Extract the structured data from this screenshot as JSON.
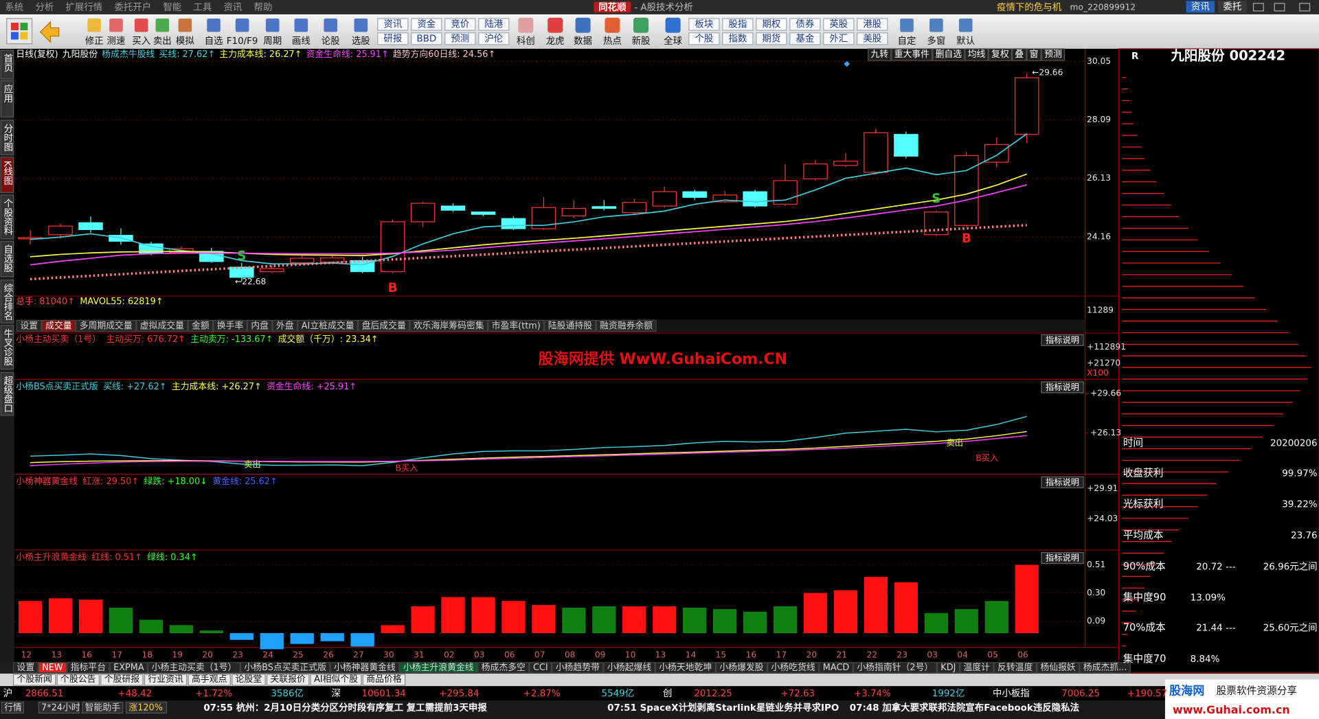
{
  "menu": [
    "系统",
    "分析",
    "扩展行情",
    "委托开户",
    "智能",
    "工具",
    "资讯",
    "帮助"
  ],
  "title": {
    "brand": "同花顺",
    "subtitle": "- A股技术分析"
  },
  "top_right": {
    "promo": "疫情下的危与机",
    "user": "mo_220899912",
    "buttons": [
      "资讯",
      "委托"
    ]
  },
  "toolbar": {
    "buttons": [
      "修正",
      "测速",
      "买入",
      "卖出",
      "模拟",
      "自选",
      "F10/F9",
      "周期",
      "画线",
      "论股",
      "选股"
    ],
    "group1": [
      "资讯",
      "资金",
      "竞价",
      "陆港",
      "研报",
      "BBD",
      "预测",
      "沪伦"
    ],
    "mid": [
      "科创",
      "龙虎",
      "数据",
      "热点",
      "新股",
      "全球"
    ],
    "group2": [
      "板块",
      "股指",
      "期权",
      "债券",
      "英股",
      "港股",
      "个股",
      "指数",
      "期货",
      "基金",
      "外汇",
      "美股"
    ],
    "right": [
      "自定",
      "多窗",
      "默认"
    ]
  },
  "sidebar": [
    "首页",
    "应用",
    "分时图",
    "K线图",
    "个股资料",
    "自选股",
    "综合排名",
    "牛叉诊股",
    "超级盘口"
  ],
  "main_chart": {
    "type": "candlestick",
    "header": [
      {
        "text": "日线(复权)",
        "color": "#ffffff"
      },
      {
        "text": "九阳股份",
        "color": "#ffffff"
      },
      {
        "text": "杨成杰牛股线",
        "color": "#3fd0e0"
      },
      {
        "text": "买线: 27.62↑",
        "color": "#3fd0e0"
      },
      {
        "text": "主力成本线: 26.27↑",
        "color": "#ffff40"
      },
      {
        "text": "资金生命线: 25.91↑",
        "color": "#ff40ff"
      },
      {
        "text": "趋势方向60日线: 24.56↑",
        "color": "#ffc0c0"
      }
    ],
    "tools": [
      "九转",
      "重大事件",
      "删自选",
      "均线",
      "复权",
      "叠",
      "窗",
      "预测"
    ],
    "ylim": [
      22.24,
      30.47
    ],
    "yticks": [
      30.05,
      28.09,
      26.13,
      24.16
    ],
    "open": [
      24.1,
      24.24,
      24.64,
      24.22,
      23.93,
      23.65,
      23.68,
      23.15,
      23.0,
      23.3,
      23.32,
      23.37,
      23.0,
      24.67,
      25.2,
      25.0,
      24.78,
      24.44,
      24.87,
      25.18,
      24.98,
      25.2,
      25.68,
      25.34,
      25.68,
      25.26,
      26.11,
      26.56,
      26.33,
      27.6,
      24.24,
      24.55,
      26.67,
      27.6
    ],
    "close": [
      24.14,
      24.53,
      24.41,
      24.02,
      23.62,
      23.77,
      23.34,
      22.81,
      23.1,
      23.45,
      23.46,
      23.0,
      24.67,
      25.29,
      25.06,
      24.92,
      24.44,
      25.15,
      25.12,
      25.12,
      25.32,
      25.68,
      25.49,
      25.57,
      25.2,
      26.05,
      26.61,
      26.7,
      27.66,
      26.87,
      25.0,
      26.89,
      27.26,
      29.5
    ],
    "high": [
      24.4,
      24.62,
      24.85,
      24.45,
      24.0,
      23.85,
      23.8,
      23.3,
      23.2,
      23.55,
      23.6,
      23.5,
      24.75,
      25.35,
      25.3,
      25.0,
      24.85,
      25.5,
      25.4,
      25.4,
      25.45,
      25.85,
      25.75,
      25.7,
      25.75,
      26.6,
      26.75,
      26.98,
      27.8,
      27.7,
      25.05,
      27.0,
      27.5,
      29.66
    ],
    "low": [
      23.9,
      24.1,
      24.3,
      23.9,
      23.55,
      23.6,
      23.3,
      22.68,
      22.95,
      23.25,
      23.25,
      22.95,
      22.95,
      24.5,
      25.0,
      24.85,
      24.4,
      24.4,
      24.8,
      25.05,
      24.9,
      25.15,
      25.4,
      25.3,
      25.15,
      25.2,
      26.05,
      26.5,
      26.25,
      26.8,
      24.2,
      24.5,
      26.5,
      27.3
    ],
    "up_color": "#ff3232",
    "down_color": "#54ffff",
    "lines": [
      {
        "color": "#3fd0e0",
        "values": [
          24.08,
          24.16,
          24.27,
          24.13,
          23.85,
          23.71,
          23.6,
          23.37,
          23.26,
          23.26,
          23.29,
          23.23,
          23.51,
          23.93,
          24.27,
          24.5,
          24.55,
          24.55,
          24.67,
          24.84,
          24.92,
          25.03,
          25.26,
          25.4,
          25.34,
          25.4,
          25.74,
          26.13,
          26.3,
          26.47,
          26.25,
          26.39,
          26.9,
          27.62
        ]
      },
      {
        "color": "#ffff40",
        "values": [
          23.5,
          23.58,
          23.63,
          23.66,
          23.67,
          23.68,
          23.66,
          23.62,
          23.58,
          23.56,
          23.55,
          23.54,
          23.6,
          23.7,
          23.8,
          23.9,
          23.98,
          24.05,
          24.12,
          24.2,
          24.28,
          24.36,
          24.44,
          24.52,
          24.6,
          24.68,
          24.8,
          24.95,
          25.1,
          25.25,
          25.4,
          25.6,
          25.9,
          26.27
        ]
      },
      {
        "color": "#ff40ff",
        "values": [
          23.23,
          23.35,
          23.45,
          23.55,
          23.6,
          23.62,
          23.62,
          23.62,
          23.61,
          23.6,
          23.6,
          23.6,
          23.62,
          23.66,
          23.72,
          23.8,
          23.88,
          23.96,
          24.03,
          24.1,
          24.18,
          24.26,
          24.34,
          24.42,
          24.5,
          24.58,
          24.68,
          24.8,
          24.93,
          25.07,
          25.2,
          25.4,
          25.65,
          25.91
        ]
      }
    ],
    "trend_line": {
      "color": "#ff8080",
      "values": [
        22.75,
        24.56
      ]
    },
    "max_label": "←29.66",
    "min_label": "←22.68",
    "signals": [
      {
        "text": "S",
        "color": "#30c040"
      },
      {
        "text": "B",
        "color": "#ff2020"
      },
      {
        "text": "S",
        "color": "#30c040"
      },
      {
        "text": "B",
        "color": "#ff2020"
      }
    ]
  },
  "dates": [
    "12",
    "13",
    "16",
    "17",
    "18",
    "19",
    "20",
    "23",
    "24",
    "25",
    "26",
    "27",
    "30",
    "31",
    "02",
    "03",
    "06",
    "07",
    "08",
    "09",
    "10",
    "13",
    "14",
    "15",
    "16",
    "17",
    "20",
    "21",
    "22",
    "23",
    "03",
    "04",
    "05",
    "06"
  ],
  "volume": {
    "header": [
      {
        "text": "总手: 81040↑",
        "color": "#ff4040"
      },
      {
        "text": "MAVOL55: 62819↑",
        "color": "#ffff40"
      }
    ],
    "axis": "11289"
  },
  "volume_tabs": {
    "active": 1,
    "items": [
      "设置",
      "成交量",
      "多周期成交量",
      "虚拟成交量",
      "金额",
      "换手率",
      "内盘",
      "外盘",
      "AI立桩成交量",
      "盘后成交量",
      "欢乐海岸筹码密集",
      "市盈率(ttm)",
      "陆股通持股",
      "融资融券余额"
    ]
  },
  "panels": [
    {
      "header": [
        {
          "text": "小杨主动买卖（1号）",
          "color": "#ff3030"
        },
        {
          "text": "主动买万: 676.72↑",
          "color": "#ff3030"
        },
        {
          "text": "主动卖万: -133.67↑",
          "color": "#30ff30"
        },
        {
          "text": "成交额（千万）: 23.34↑",
          "color": "#ffff40"
        }
      ],
      "help": "指标说明",
      "axis": [
        "+112891",
        "+21270",
        "X100"
      ],
      "watermark": "股海网提供 WwW.GuhaiCom.CN"
    },
    {
      "header": [
        {
          "text": "小杨BS点买卖正式版",
          "color": "#3fd0e0"
        },
        {
          "text": "买线: +27.62↑",
          "color": "#3fd0e0"
        },
        {
          "text": "主力成本线: +26.27↑",
          "color": "#ffff40"
        },
        {
          "text": "资金生命线: +25.91↑",
          "color": "#ff40ff"
        }
      ],
      "help": "指标说明",
      "ylim": [
        22.53,
        30.64
      ],
      "yticks": [
        {
          "value": 29.66,
          "label": "+29.66"
        },
        {
          "value": 26.13,
          "label": "+26.13"
        }
      ],
      "notes": [
        "卖出",
        "B买入",
        "卖出",
        "B买入"
      ]
    },
    {
      "header": [
        {
          "text": "小杨神器黄金线",
          "color": "#ff3030"
        },
        {
          "text": "红涨: 29.50↑",
          "color": "#ff3030"
        },
        {
          "text": "绿跌: +18.00↓",
          "color": "#30ff30"
        },
        {
          "text": "黄金线: 25.62↑",
          "color": "#4060ff"
        }
      ],
      "help": "指标说明",
      "axis": [
        "+29.91",
        "+24.03"
      ]
    },
    {
      "type": "bar",
      "header": [
        {
          "text": "小杨主升浪黄金线",
          "color": "#ff3030"
        },
        {
          "text": "红线: 0.51↑",
          "color": "#ff3030"
        },
        {
          "text": "绿线: 0.34↑",
          "color": "#30ff30"
        }
      ],
      "help": "指标说明",
      "ylim": [
        -0.107,
        0.552
      ],
      "yticks": [
        0.51,
        {
          "value": 0.3,
          "label": "0.30"
        },
        0.09
      ],
      "values": [
        0.24,
        0.26,
        0.25,
        0.19,
        0.1,
        0.06,
        0.02,
        -0.05,
        -0.12,
        -0.08,
        -0.06,
        -0.1,
        0.06,
        0.2,
        0.27,
        0.27,
        0.24,
        0.21,
        0.19,
        0.2,
        0.2,
        0.2,
        0.19,
        0.18,
        0.16,
        0.2,
        0.3,
        0.32,
        0.42,
        0.38,
        0.15,
        0.18,
        0.24,
        0.51
      ],
      "colors": [
        "#ff1010",
        "#ff1010",
        "#ff1010",
        "#108010",
        "#108010",
        "#108010",
        "#108010",
        "#20a0ff",
        "#20a0ff",
        "#20a0ff",
        "#20a0ff",
        "#20a0ff",
        "#ff1010",
        "#ff1010",
        "#ff1010",
        "#ff1010",
        "#ff1010",
        "#ff1010",
        "#108010",
        "#108010",
        "#ff1010",
        "#ff1010",
        "#108010",
        "#108010",
        "#108010",
        "#108010",
        "#ff1010",
        "#ff1010",
        "#ff1010",
        "#ff1010",
        "#108010",
        "#108010",
        "#108010",
        "#ff1010"
      ]
    }
  ],
  "bottom_tabs": {
    "active": 7,
    "items": [
      "设置",
      "NEW",
      "指标平台",
      "EXPMA",
      "小杨主动买卖（1号）",
      "小杨BS点买卖正式版",
      "小杨神器黄金线",
      "小杨主升浪黄金线",
      "杨成杰多空",
      "CCI",
      "小杨趋势带",
      "小杨起爆线",
      "小杨天地乾坤",
      "小杨爆发股",
      "小杨吃货线",
      "MACD",
      "小杨指南针（2号）",
      "KDJ",
      "温度计",
      "反转温度",
      "杨仙报妖",
      "杨成杰抓..."
    ]
  },
  "news_tabs": [
    "个股新闻",
    "个股公告",
    "个股研报",
    "行业资讯",
    "高手观点",
    "论股堂",
    "关联报价",
    "AI相似个股",
    "商品价格"
  ],
  "status": [
    {
      "text": "沪",
      "color": "#ffffff"
    },
    {
      "text": "2866.51",
      "color": "#ff4040"
    },
    {
      "text": "+48.42",
      "color": "#ff4040"
    },
    {
      "text": "+1.72%",
      "color": "#ff4040"
    },
    {
      "text": "3586亿",
      "color": "#3fd0e0"
    },
    {
      "text": "深",
      "color": "#ffffff"
    },
    {
      "text": "10601.34",
      "color": "#ff4040"
    },
    {
      "text": "+295.84",
      "color": "#ff4040"
    },
    {
      "text": "+2.87%",
      "color": "#ff4040"
    },
    {
      "text": "5549亿",
      "color": "#3fd0e0"
    },
    {
      "text": "创",
      "color": "#ffffff"
    },
    {
      "text": "2012.25",
      "color": "#ff4040"
    },
    {
      "text": "+72.63",
      "color": "#ff4040"
    },
    {
      "text": "+3.74%",
      "color": "#ff4040"
    },
    {
      "text": "1992亿",
      "color": "#3fd0e0"
    },
    {
      "text": "中小板指",
      "color": "#ffffff"
    },
    {
      "text": "7006.25",
      "color": "#ff4040"
    },
    {
      "text": "+190.57",
      "color": "#ff4040"
    }
  ],
  "ticker": {
    "tabs": [
      "行情",
      "7*24小时",
      "智能助手",
      "涨120%"
    ],
    "news": [
      "07:55 杭州：2月10日分类分区分时段有序复工 复工需提前3天申报",
      "07:51 SpaceX计划剥离Starlink星链业务并寻求IPO",
      "07:48 加拿大要求联邦法院宣布Facebook违反隐私法"
    ]
  },
  "right_panel": {
    "flag": "R",
    "name": "九阳股份 002242",
    "chips": [
      2,
      3,
      4,
      5,
      6,
      8,
      10,
      12,
      15,
      18,
      22,
      26,
      30,
      35,
      40,
      46,
      52,
      58,
      64,
      70,
      76,
      82,
      88,
      93,
      97,
      100,
      98,
      94,
      90,
      85,
      80,
      74,
      68,
      62,
      56,
      50,
      45,
      40,
      35,
      30,
      26,
      22,
      18,
      15,
      12,
      9,
      7,
      5,
      3,
      2
    ],
    "stats": [
      {
        "label": "时间",
        "value": "20200206"
      },
      {
        "label": "收盘获利",
        "value": "99.97%"
      },
      {
        "label": "光标获利",
        "value": "39.22%"
      },
      {
        "label": "平均成本",
        "value": "23.76"
      },
      {
        "label": "90%成本",
        "value": "20.72 ---",
        "extra": "26.96元之间"
      },
      {
        "label": "集中度90",
        "value": "13.09%"
      },
      {
        "label": "70%成本",
        "value": "21.44 ---",
        "extra": "25.60元之间"
      },
      {
        "label": "集中度70",
        "value": "8.84%"
      }
    ]
  },
  "watermark": {
    "brand": "股海网",
    "slogan": "股票软件资源分享",
    "url": "www.Guhai.com.cn"
  }
}
